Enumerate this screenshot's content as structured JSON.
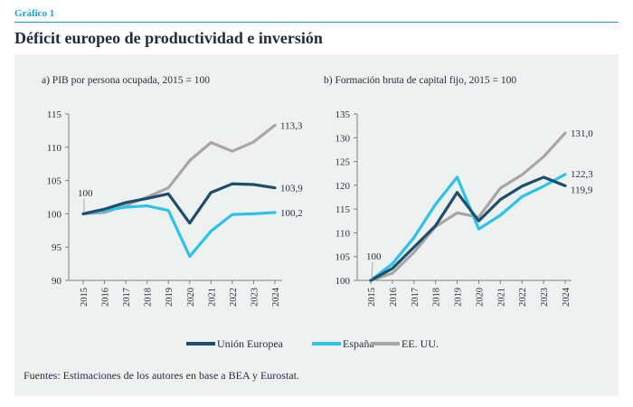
{
  "figure_label": "Gráfico 1",
  "title": "Déficit europeo de productividad e inversión",
  "source": "Fuentes: Estimaciones de los autores en base a BEA y Eurostat.",
  "colors": {
    "accent": "#17a3c9",
    "union_europea": "#1d4e6e",
    "espana": "#29c4e8",
    "eeuu": "#a6a6a6",
    "panel_bg": "#eff0f0"
  },
  "chart_data": [
    {
      "type": "line",
      "title": "a) PIB por persona ocupada, 2015 = 100",
      "x": [
        "2015",
        "2016",
        "2017",
        "2018",
        "2019",
        "2020",
        "2021",
        "2022",
        "2023",
        "2024"
      ],
      "ylim": [
        90,
        115
      ],
      "yticks": [
        90,
        95,
        100,
        105,
        110,
        115
      ],
      "grid": false,
      "start_label": "100",
      "series": [
        {
          "name": "Unión Europea",
          "color": "#1d4e6e",
          "values": [
            100,
            100.7,
            101.7,
            102.3,
            103.0,
            98.6,
            103.2,
            104.5,
            104.4,
            103.9
          ],
          "end_label": "103,9"
        },
        {
          "name": "España",
          "color": "#29c4e8",
          "values": [
            100,
            100.5,
            101.0,
            101.2,
            100.5,
            93.6,
            97.4,
            99.9,
            100.0,
            100.2
          ],
          "end_label": "100,2"
        },
        {
          "name": "EE. UU.",
          "color": "#a6a6a6",
          "values": [
            100,
            100.2,
            101.3,
            102.5,
            103.9,
            108.0,
            110.7,
            109.4,
            110.8,
            113.3
          ],
          "end_label": "113,3"
        }
      ]
    },
    {
      "type": "line",
      "title": "b) Formación bruta de capital fijo, 2015 = 100",
      "x": [
        "2015",
        "2016",
        "2017",
        "2018",
        "2019",
        "2020",
        "2021",
        "2022",
        "2023",
        "2024"
      ],
      "ylim": [
        100,
        135
      ],
      "yticks": [
        100,
        105,
        110,
        115,
        120,
        125,
        130,
        135
      ],
      "grid": false,
      "start_label": "100",
      "series": [
        {
          "name": "Unión Europea",
          "color": "#1d4e6e",
          "values": [
            100,
            102.5,
            107.0,
            111.5,
            118.5,
            112.5,
            117.0,
            119.8,
            121.7,
            119.9
          ],
          "end_label": "119,9"
        },
        {
          "name": "España",
          "color": "#29c4e8",
          "values": [
            100,
            103.5,
            109.0,
            116.0,
            121.7,
            110.8,
            113.7,
            117.6,
            119.8,
            122.3
          ],
          "end_label": "122,3"
        },
        {
          "name": "EE. UU.",
          "color": "#a6a6a6",
          "values": [
            100,
            101.5,
            105.9,
            111.3,
            114.2,
            113.3,
            119.4,
            122.2,
            126.0,
            131.0
          ],
          "end_label": "131,0"
        }
      ]
    }
  ],
  "legend": [
    {
      "label": "Unión Europea",
      "color": "#1d4e6e"
    },
    {
      "label": "España",
      "color": "#29c4e8"
    },
    {
      "label": "EE. UU.",
      "color": "#a6a6a6"
    }
  ]
}
